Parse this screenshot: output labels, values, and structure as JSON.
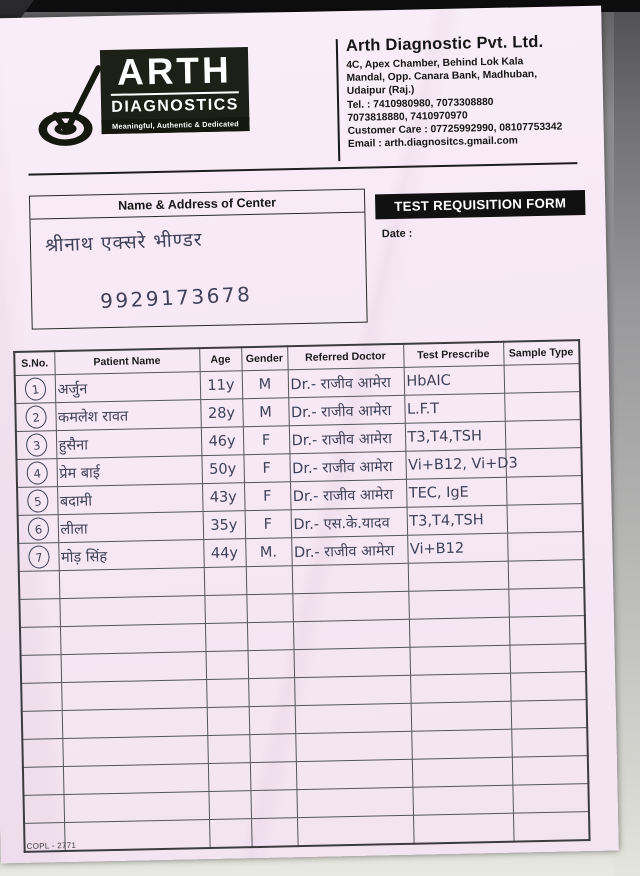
{
  "logo": {
    "name": "ARTH",
    "sub": "DIAGNOSTICS",
    "tagline": "Meaningful, Authentic & Dedicated"
  },
  "company": {
    "name": "Arth Diagnostic Pvt. Ltd.",
    "address_line1": "4C, Apex Chamber, Behind Lok Kala",
    "address_line2": "Mandal, Opp. Canara Bank, Madhuban,",
    "address_line3": "Udaipur (Raj.)",
    "tel_line1": "Tel. : 7410980980, 7073308880",
    "tel_line2": "7073818880, 7410970970",
    "customer_care": "Customer Care : 07725992990, 08107753342",
    "email": "Email : arth.diagnositcs.gmail.com"
  },
  "center_box": {
    "title": "Name & Address of Center",
    "handwritten_name": "श्रीनाथ एक्सरे भीण्डर",
    "handwritten_phone": "9929173678"
  },
  "form": {
    "title": "TEST REQUISITION FORM",
    "date_label": "Date :"
  },
  "table": {
    "headers": [
      "S.No.",
      "Patient Name",
      "Age",
      "Gender",
      "Referred Doctor",
      "Test Prescribe",
      "Sample Type"
    ],
    "rows": [
      {
        "sno": "1",
        "name": "अर्जुन",
        "age": "11y",
        "gender": "M",
        "doctor": "Dr.- राजीव आमेरा",
        "test": "HbAIC",
        "sample": ""
      },
      {
        "sno": "2",
        "name": "कमलेश रावत",
        "age": "28y",
        "gender": "M",
        "doctor": "Dr.- राजीव आमेरा",
        "test": "L.F.T",
        "sample": ""
      },
      {
        "sno": "3",
        "name": "हुसैना",
        "age": "46y",
        "gender": "F",
        "doctor": "Dr.- राजीव आमेरा",
        "test": "T3,T4,TSH",
        "sample": ""
      },
      {
        "sno": "4",
        "name": "प्रेम बाई",
        "age": "50y",
        "gender": "F",
        "doctor": "Dr.- राजीव आमेरा",
        "test": "Vi+B12, Vi+D3",
        "sample": ""
      },
      {
        "sno": "5",
        "name": "बदामी",
        "age": "43y",
        "gender": "F",
        "doctor": "Dr.- राजीव आमेरा",
        "test": "TEC, IgE",
        "sample": ""
      },
      {
        "sno": "6",
        "name": "लीला",
        "age": "35y",
        "gender": "F",
        "doctor": "Dr.- एस.के.यादव",
        "test": "T3,T4,TSH",
        "sample": ""
      },
      {
        "sno": "7",
        "name": "मोड़ सिंह",
        "age": "44y",
        "gender": "M.",
        "doctor": "Dr.- राजीव आमेरा",
        "test": "Vi+B12",
        "sample": ""
      }
    ],
    "empty_row_count": 10
  },
  "footer": {
    "code": "COPL - 2771"
  }
}
